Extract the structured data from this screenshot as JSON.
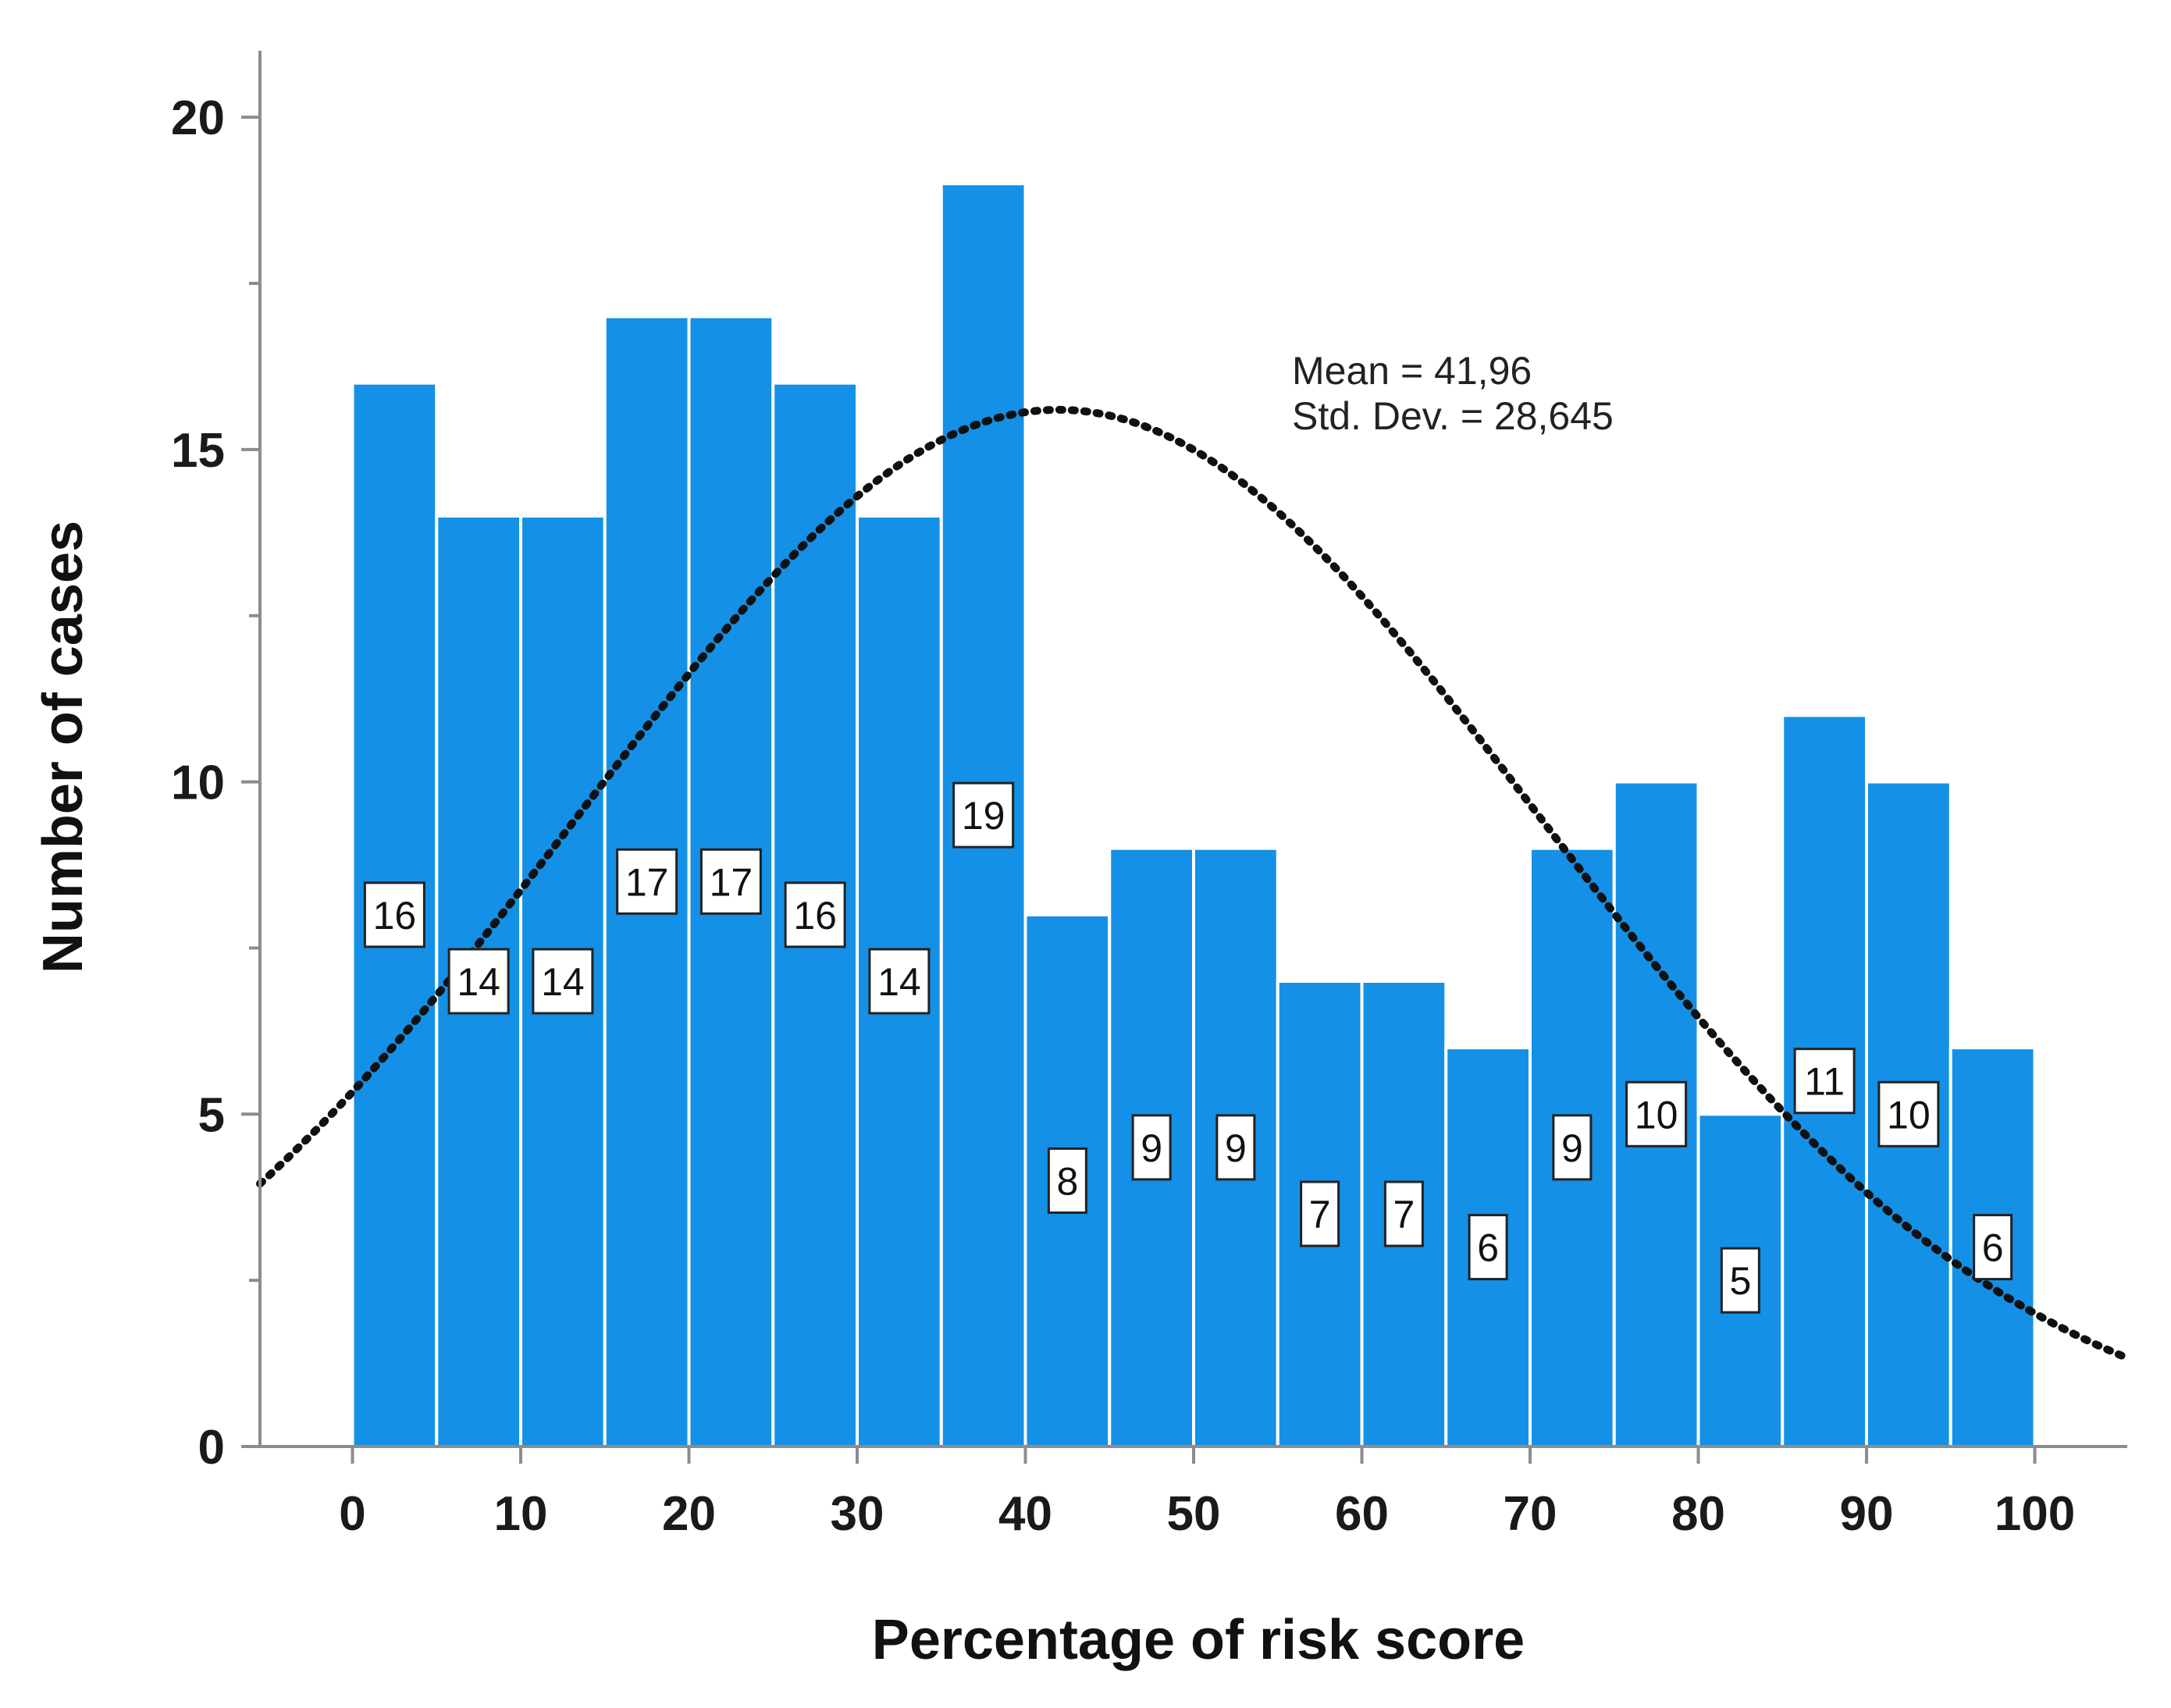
{
  "chart_data": {
    "type": "bar",
    "subtype": "histogram",
    "bin_edges": [
      0,
      5,
      10,
      15,
      20,
      25,
      30,
      35,
      40,
      45,
      50,
      55,
      60,
      65,
      70,
      75,
      80,
      85,
      90,
      95,
      100
    ],
    "values": [
      16,
      14,
      14,
      17,
      17,
      16,
      14,
      19,
      8,
      9,
      9,
      7,
      7,
      6,
      9,
      10,
      5,
      11,
      10,
      6
    ],
    "data_labels": [
      "16",
      "14",
      "14",
      "17",
      "17",
      "16",
      "14",
      "19",
      "8",
      "9",
      "9",
      "7",
      "7",
      "6",
      "9",
      "10",
      "5",
      "11",
      "10",
      "6"
    ],
    "title": "",
    "xlabel": "Percentage of risk score",
    "ylabel": "Number of cases",
    "xlim": [
      -5.5,
      105.5
    ],
    "ylim": [
      0,
      21
    ],
    "xticks": [
      0,
      10,
      20,
      30,
      40,
      50,
      60,
      70,
      80,
      90,
      100
    ],
    "xtick_labels": [
      "0",
      "10",
      "20",
      "30",
      "40",
      "50",
      "60",
      "70",
      "80",
      "90",
      "100"
    ],
    "yticks": [
      0,
      5,
      10,
      15,
      20
    ],
    "ytick_labels": [
      "0",
      "5",
      "10",
      "15",
      "20"
    ],
    "yminor_ticks": [
      2.5,
      7.5,
      12.5,
      17.5
    ],
    "grid": false,
    "bar_color": "#1490e6",
    "normal_curve": {
      "mean": 41.96,
      "std_dev": 28.645,
      "n": 224,
      "bin_width": 5,
      "style": "dotted"
    },
    "annotations": {
      "mean_text": "Mean = 41,96",
      "std_text": "Std. Dev. = 28,645"
    }
  }
}
